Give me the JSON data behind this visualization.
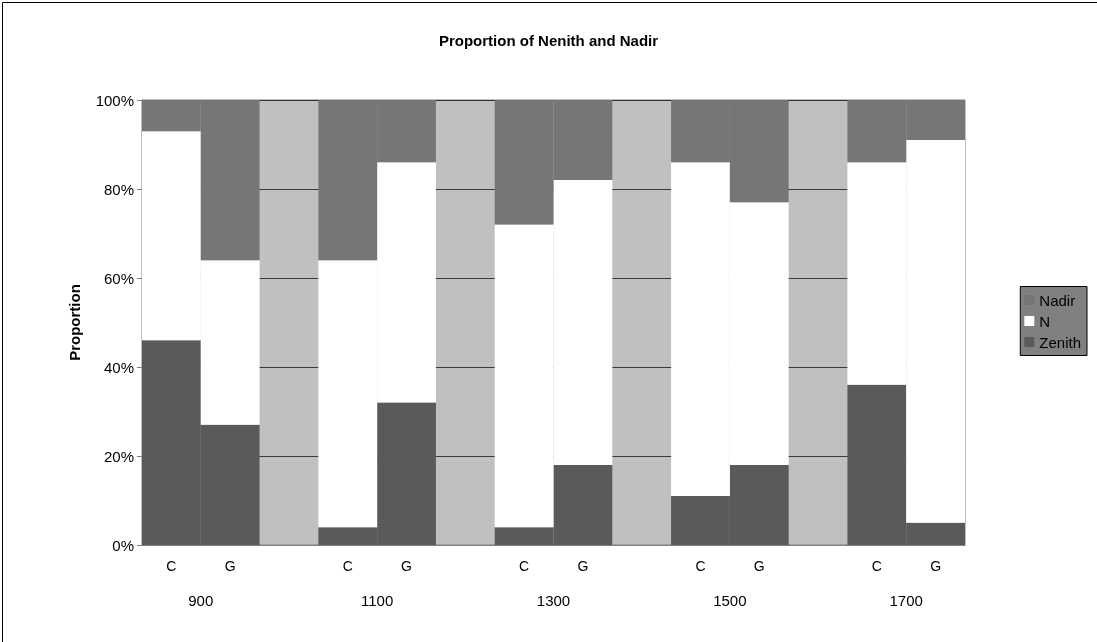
{
  "chart_data": {
    "type": "bar",
    "title": "Proportion of Nenith and Nadir",
    "ylabel": "Proportion",
    "stacked": true,
    "categories": [
      "C",
      "G",
      null,
      "C",
      "G",
      null,
      "C",
      "G",
      null,
      "C",
      "G",
      null,
      "C",
      "G"
    ],
    "series": [
      {
        "name": "Zenith",
        "color": "#5a5a5a",
        "values": [
          46,
          27,
          null,
          4,
          32,
          null,
          4,
          18,
          null,
          11,
          18,
          null,
          36,
          5
        ]
      },
      {
        "name": "N",
        "color": "#ffffff",
        "values": [
          47,
          37,
          null,
          60,
          54,
          null,
          68,
          64,
          null,
          75,
          59,
          null,
          50,
          86
        ]
      },
      {
        "name": "Nadir",
        "color": "#767676",
        "values": [
          7,
          36,
          null,
          36,
          14,
          null,
          28,
          18,
          null,
          14,
          23,
          null,
          14,
          9
        ]
      }
    ],
    "ylim": [
      0,
      100
    ],
    "yticks": [
      {
        "value": 0,
        "label": "0%"
      },
      {
        "value": 20,
        "label": "20%"
      },
      {
        "value": 40,
        "label": "40%"
      },
      {
        "value": 60,
        "label": "60%"
      },
      {
        "value": 80,
        "label": "80%"
      },
      {
        "value": 100,
        "label": "100%"
      }
    ],
    "grid": "y",
    "legend": "right",
    "annotations": [
      "900",
      "1100",
      "1300",
      "1500",
      "1700"
    ]
  }
}
